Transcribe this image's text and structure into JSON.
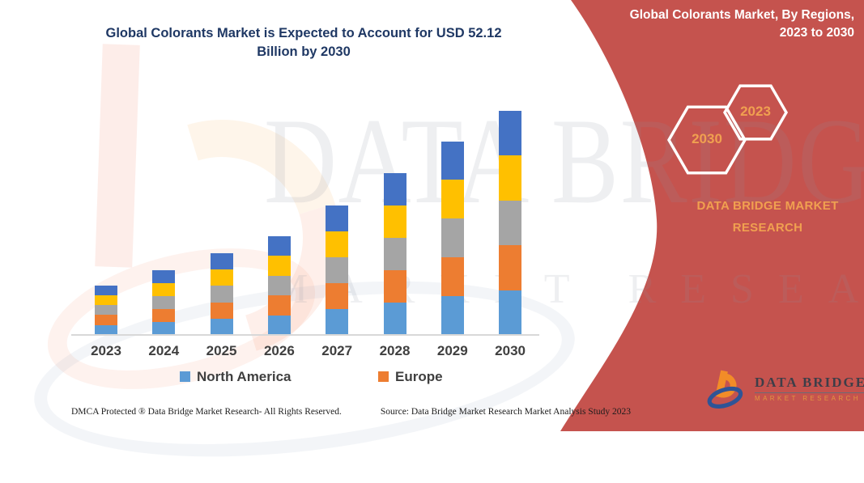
{
  "title": {
    "line1": "Global Colorants Market is Expected to Account for USD 52.12",
    "line2": "Billion by 2030",
    "color": "#1F3864"
  },
  "watermark": {
    "brand": "DATA BRIDGE",
    "tagline": "MARKET RESEARCH"
  },
  "legend": [
    {
      "label": "North America",
      "color": "#5B9BD5"
    },
    {
      "label": "Europe",
      "color": "#ED7D31"
    }
  ],
  "chart_data": {
    "type": "bar",
    "stacked": true,
    "title": "Global Colorants Market is Expected to Account for USD 52.12 Billion by 2030",
    "xlabel": "",
    "ylabel": "",
    "units": "USD Billion (estimated from bar heights; 2030 total = 52.12)",
    "grid": false,
    "y_axis_visible": false,
    "legend_position": "bottom",
    "legend_entries_shown": [
      "North America",
      "Europe"
    ],
    "categories": [
      "2023",
      "2024",
      "2025",
      "2026",
      "2027",
      "2028",
      "2029",
      "2030"
    ],
    "series": [
      {
        "name": "North America",
        "color": "#5B9BD5",
        "values": [
          2.3,
          3.0,
          3.8,
          4.6,
          6.0,
          7.5,
          9.0,
          10.4
        ]
      },
      {
        "name": "Europe",
        "color": "#ED7D31",
        "values": [
          2.3,
          3.0,
          3.8,
          4.6,
          6.0,
          7.5,
          9.0,
          10.4
        ]
      },
      {
        "name": "unlabeled segment (gray)",
        "color": "#A5A5A5",
        "values": [
          2.3,
          3.0,
          3.8,
          4.6,
          6.0,
          7.5,
          9.0,
          10.4
        ]
      },
      {
        "name": "unlabeled segment (yellow)",
        "color": "#FFC000",
        "values": [
          2.3,
          3.0,
          3.8,
          4.6,
          6.0,
          7.5,
          9.0,
          10.4
        ]
      },
      {
        "name": "unlabeled segment (dark blue)",
        "color": "#4472C4",
        "values": [
          2.3,
          3.0,
          3.8,
          4.6,
          6.0,
          7.5,
          9.0,
          10.4
        ]
      }
    ],
    "estimated_totals": [
      11.5,
      15.0,
      19.0,
      23.0,
      30.0,
      37.5,
      45.0,
      52.12
    ]
  },
  "footer": {
    "left": "DMCA Protected ® Data Bridge Market Research-  All Rights Reserved.",
    "source": "Source: Data Bridge Market Research  Market Analysis Study 2023"
  },
  "side_panel": {
    "bg_color": "#C5534E",
    "accent_color": "#F0A050",
    "title_line1": "Global Colorants Market, By Regions,",
    "title_line2": "2023 to 2030",
    "hexagons": [
      {
        "label": "2030"
      },
      {
        "label": "2023"
      }
    ],
    "brand_line1": "DATA BRIDGE MARKET",
    "brand_line2": "RESEARCH",
    "logo": {
      "name": "DATA BRIDGE",
      "tagline": "MARKET RESEARCH"
    }
  }
}
